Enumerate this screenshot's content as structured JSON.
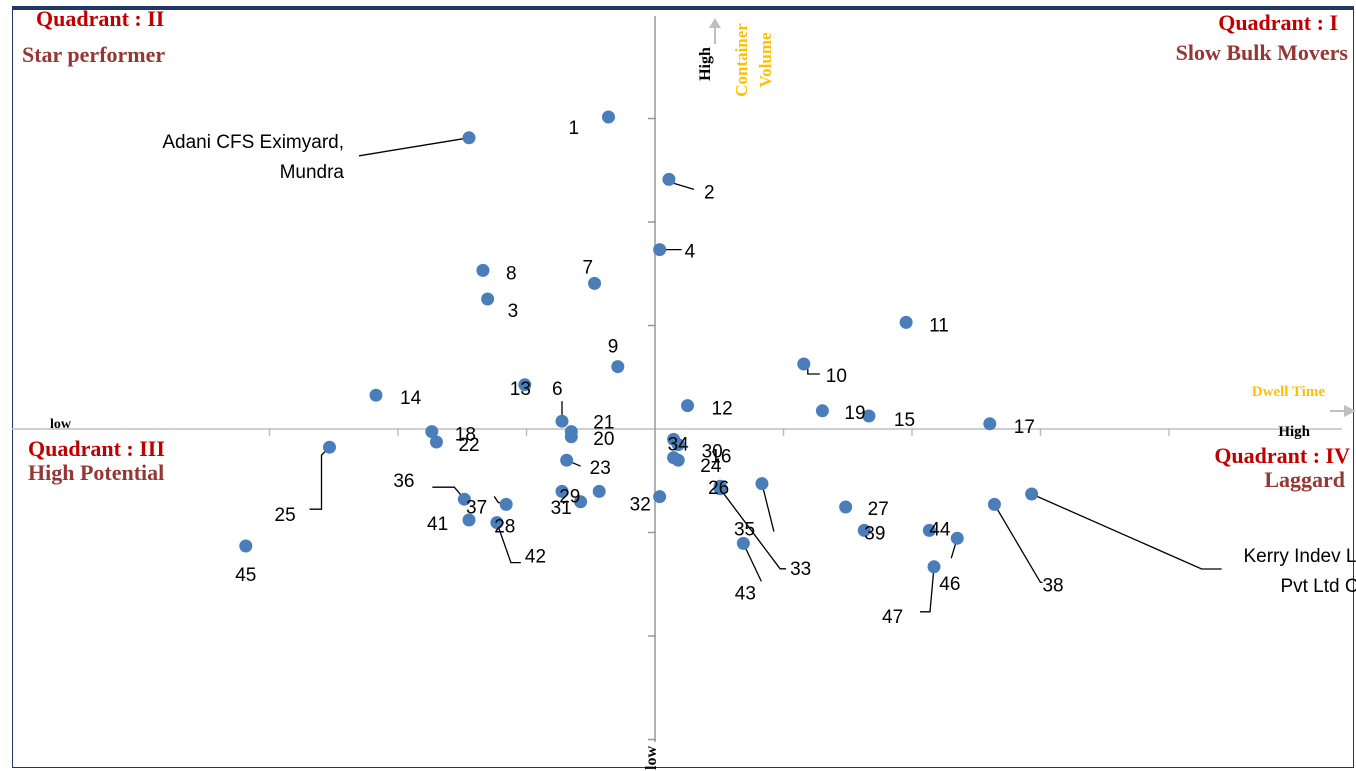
{
  "chart_data": {
    "type": "scatter",
    "title": "",
    "colors": {
      "point": "#4a7ebb",
      "quadrant_num": "#c00000",
      "quadrant_name": "#953735",
      "axis_title": "#ffc000",
      "axis": "#bfbfbf",
      "arrow": "#bfbfbf"
    },
    "x_axis": {
      "title": "Dwell Time",
      "low_label": "low",
      "high_label": "High"
    },
    "y_axis": {
      "title_line1": "Container",
      "title_line2": "Volume",
      "high_label": "High",
      "low_label": "low"
    },
    "quadrants": {
      "q1": {
        "number": "Quadrant : I",
        "name": "Slow Bulk Movers"
      },
      "q2": {
        "number": "Quadrant : II",
        "name": "Star performer"
      },
      "q3": {
        "number": "Quadrant : III",
        "name": "High Potential"
      },
      "q4": {
        "number": "Quadrant : IV",
        "name": "Laggard"
      }
    },
    "points": [
      {
        "label": "1",
        "x": -0.5,
        "y": 6.0
      },
      {
        "label": "Adani CFS Eximyard, Mundra",
        "x": -2.0,
        "y": 5.6
      },
      {
        "label": "2",
        "x": 0.15,
        "y": 4.8
      },
      {
        "label": "4",
        "x": 0.05,
        "y": 3.45
      },
      {
        "label": "8",
        "x": -1.85,
        "y": 3.05
      },
      {
        "label": "7",
        "x": -0.65,
        "y": 2.8
      },
      {
        "label": "3",
        "x": -1.8,
        "y": 2.5
      },
      {
        "label": "11",
        "x": 2.7,
        "y": 2.05
      },
      {
        "label": "9",
        "x": -0.4,
        "y": 1.2
      },
      {
        "label": "10",
        "x": 1.6,
        "y": 1.25
      },
      {
        "label": "13",
        "x": -1.4,
        "y": 0.85
      },
      {
        "label": "6",
        "x": -1.0,
        "y": 0.15
      },
      {
        "label": "14",
        "x": -3.0,
        "y": 0.65
      },
      {
        "label": "12",
        "x": 0.35,
        "y": 0.45
      },
      {
        "label": "19",
        "x": 1.8,
        "y": 0.35
      },
      {
        "label": "15",
        "x": 2.3,
        "y": 0.25
      },
      {
        "label": "17",
        "x": 3.6,
        "y": 0.1
      },
      {
        "label": "18",
        "x": -2.4,
        "y": -0.05
      },
      {
        "label": "22",
        "x": -2.35,
        "y": -0.25
      },
      {
        "label": "21",
        "x": -0.9,
        "y": -0.05
      },
      {
        "label": "20",
        "x": -0.9,
        "y": -0.15
      },
      {
        "label": "34",
        "x": 0.2,
        "y": -0.2
      },
      {
        "label": "16",
        "x": 0.25,
        "y": -0.3
      },
      {
        "label": "30",
        "x": 0.2,
        "y": -0.55
      },
      {
        "label": "24",
        "x": 0.25,
        "y": -0.6
      },
      {
        "label": "25",
        "x": -3.5,
        "y": -0.35
      },
      {
        "label": "23",
        "x": -0.95,
        "y": -0.6
      },
      {
        "label": "37",
        "x": -1.0,
        "y": -1.2
      },
      {
        "label": "29",
        "x": -0.6,
        "y": -1.2
      },
      {
        "label": "31",
        "x": -0.8,
        "y": -1.4
      },
      {
        "label": "36",
        "x": -2.05,
        "y": -1.35
      },
      {
        "label": "41",
        "x": -2.0,
        "y": -1.75
      },
      {
        "label": "28",
        "x": -1.6,
        "y": -1.45
      },
      {
        "label": "42",
        "x": -1.7,
        "y": -1.8
      },
      {
        "label": "45",
        "x": -4.4,
        "y": -2.25
      },
      {
        "label": "32",
        "x": 0.05,
        "y": -1.3
      },
      {
        "label": "26",
        "x": 0.7,
        "y": -1.1
      },
      {
        "label": "35",
        "x": 1.15,
        "y": -1.05
      },
      {
        "label": "33",
        "x": 0.7,
        "y": -1.15
      },
      {
        "label": "43",
        "x": 0.95,
        "y": -2.2
      },
      {
        "label": "27",
        "x": 2.05,
        "y": -1.5
      },
      {
        "label": "39",
        "x": 2.25,
        "y": -1.95
      },
      {
        "label": "44",
        "x": 2.95,
        "y": -1.95
      },
      {
        "label": "46",
        "x": 3.25,
        "y": -2.1
      },
      {
        "label": "47",
        "x": 3.0,
        "y": -2.65
      },
      {
        "label": "38",
        "x": 3.65,
        "y": -1.45
      },
      {
        "label": "Kerry Indev Logistics Pvt Ltd CFS",
        "x": 4.05,
        "y": -1.25
      }
    ]
  }
}
